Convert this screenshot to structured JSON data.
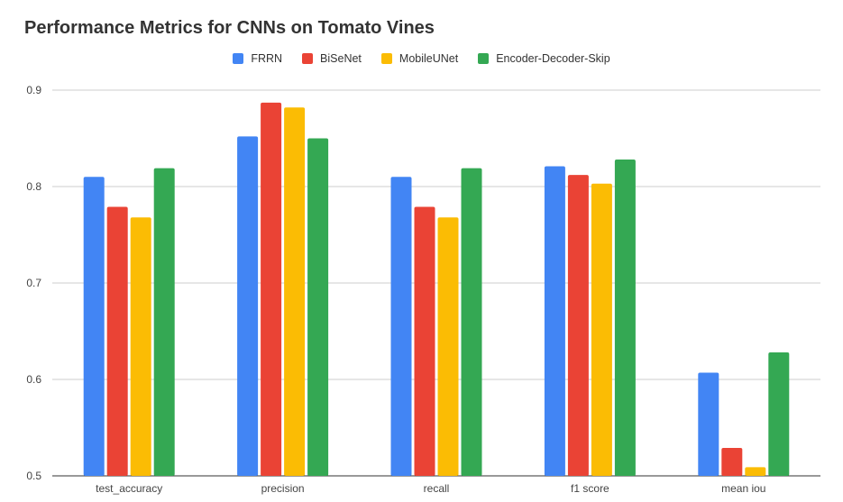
{
  "chart_data": {
    "type": "bar",
    "title": "Performance Metrics for CNNs on Tomato Vines",
    "categories": [
      "test_accuracy",
      "precision",
      "recall",
      "f1 score",
      "mean iou"
    ],
    "series": [
      {
        "name": "FRRN",
        "color": "#4285F4",
        "values": [
          0.81,
          0.852,
          0.81,
          0.821,
          0.607
        ]
      },
      {
        "name": "BiSeNet",
        "color": "#EA4335",
        "values": [
          0.779,
          0.887,
          0.779,
          0.812,
          0.529
        ]
      },
      {
        "name": "MobileUNet",
        "color": "#FBBC04",
        "values": [
          0.768,
          0.882,
          0.768,
          0.803,
          0.509
        ]
      },
      {
        "name": "Encoder-Decoder-Skip",
        "color": "#34A853",
        "values": [
          0.819,
          0.85,
          0.819,
          0.828,
          0.628
        ]
      }
    ],
    "ylim": [
      0.5,
      0.9
    ],
    "yticks": [
      "0.5",
      "0.6",
      "0.7",
      "0.8",
      "0.9"
    ],
    "grid": true,
    "legend_position": "top"
  }
}
